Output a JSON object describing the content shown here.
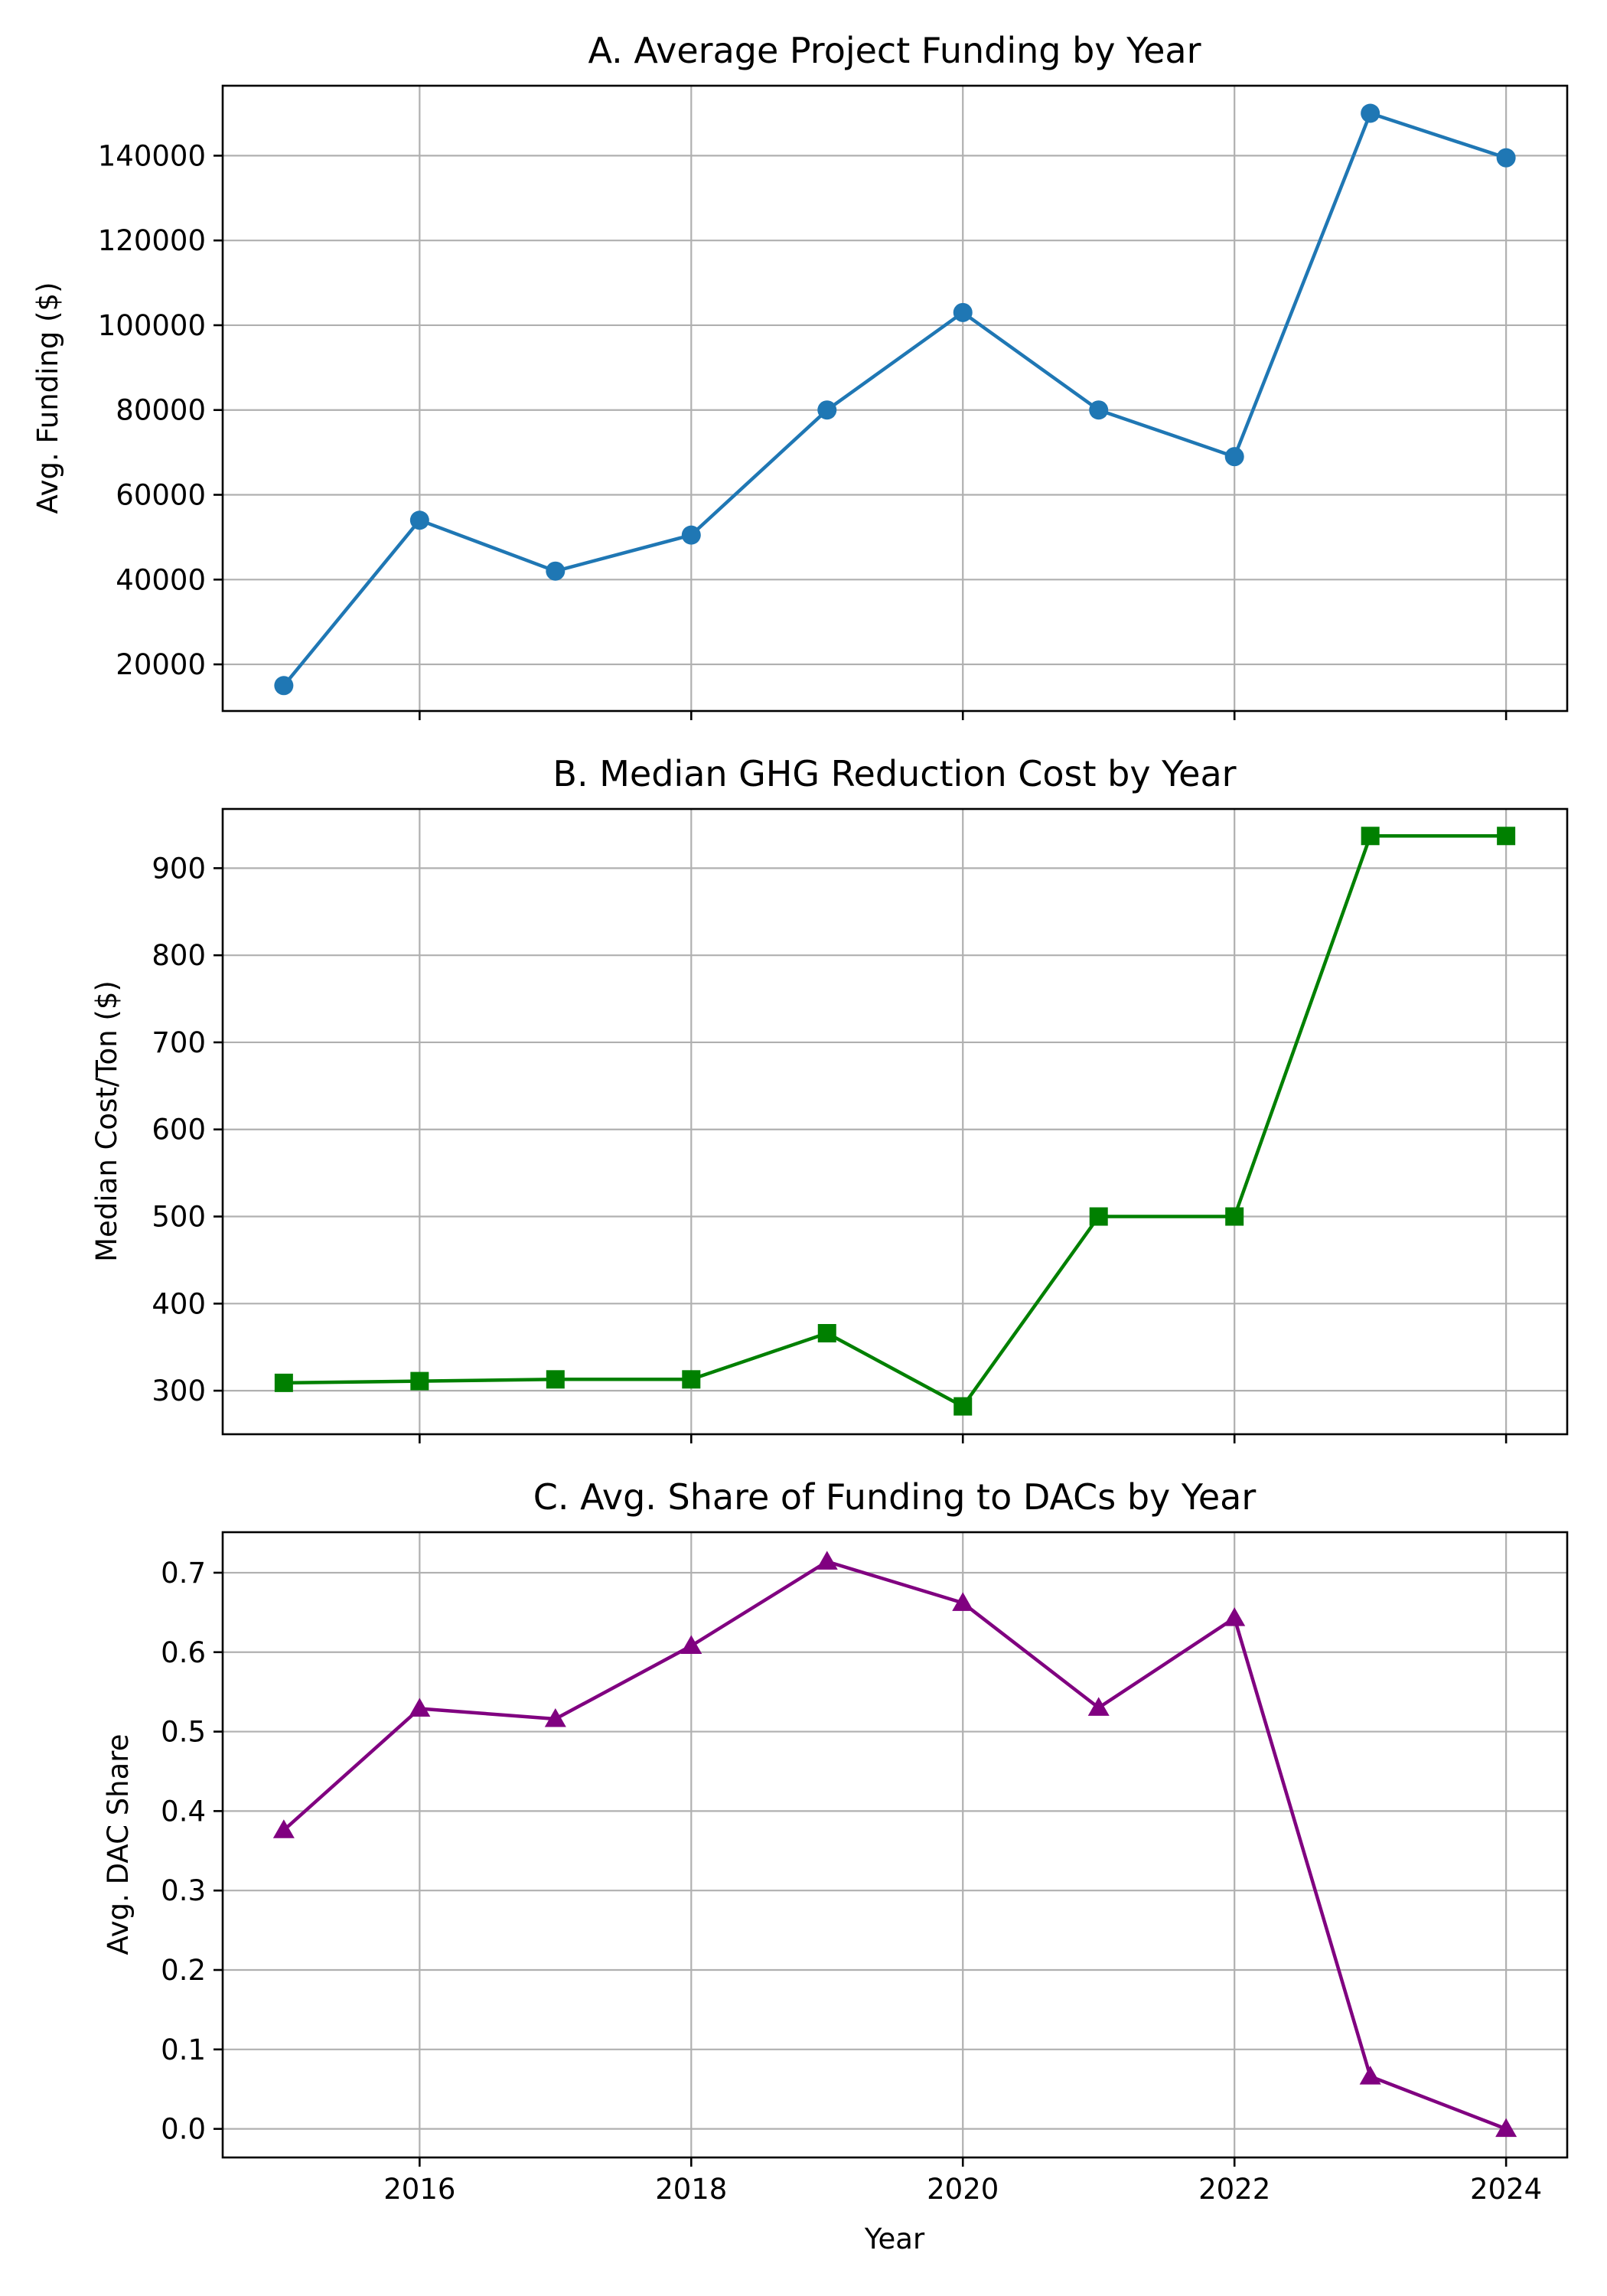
{
  "chart_data": [
    {
      "type": "line",
      "title": "A. Average Project Funding by Year",
      "xlabel": "",
      "ylabel": "Avg. Funding ($)",
      "x": [
        2015,
        2016,
        2017,
        2018,
        2019,
        2020,
        2021,
        2022,
        2023,
        2024
      ],
      "series": [
        {
          "values": [
            15000,
            54000,
            42000,
            50500,
            80000,
            103000,
            80000,
            69000,
            150000,
            139500
          ]
        }
      ],
      "xlim": [
        2014.55,
        2024.45
      ],
      "ylim": [
        9000,
        156500
      ],
      "xticks": [
        2016,
        2018,
        2020,
        2022,
        2024
      ],
      "xticks_labeled": false,
      "yticks": [
        20000,
        40000,
        60000,
        80000,
        100000,
        120000,
        140000
      ],
      "yticklabels": [
        "20000",
        "40000",
        "60000",
        "80000",
        "100000",
        "120000",
        "140000"
      ],
      "color": "#1f77b4",
      "marker": "circle",
      "grid": true
    },
    {
      "type": "line",
      "title": "B. Median GHG Reduction Cost by Year",
      "xlabel": "",
      "ylabel": "Median Cost/Ton ($)",
      "x": [
        2015,
        2016,
        2017,
        2018,
        2019,
        2020,
        2021,
        2022,
        2023,
        2024
      ],
      "series": [
        {
          "values": [
            309,
            311,
            313,
            313,
            366,
            282,
            500,
            500,
            937,
            937
          ]
        }
      ],
      "xlim": [
        2014.55,
        2024.45
      ],
      "ylim": [
        250,
        968
      ],
      "xticks": [
        2016,
        2018,
        2020,
        2022,
        2024
      ],
      "xticks_labeled": false,
      "yticks": [
        300,
        400,
        500,
        600,
        700,
        800,
        900
      ],
      "yticklabels": [
        "300",
        "400",
        "500",
        "600",
        "700",
        "800",
        "900"
      ],
      "color": "#008000",
      "marker": "square",
      "grid": true
    },
    {
      "type": "line",
      "title": "C. Avg. Share of Funding to DACs by Year",
      "xlabel": "Year",
      "ylabel": "Avg. DAC Share",
      "x": [
        2015,
        2016,
        2017,
        2018,
        2019,
        2020,
        2021,
        2022,
        2023,
        2024
      ],
      "series": [
        {
          "values": [
            0.376,
            0.529,
            0.516,
            0.608,
            0.714,
            0.662,
            0.53,
            0.643,
            0.066,
            0.0
          ]
        }
      ],
      "xlim": [
        2014.55,
        2024.45
      ],
      "ylim": [
        -0.036,
        0.751
      ],
      "xticks": [
        2016,
        2018,
        2020,
        2022,
        2024
      ],
      "xticks_labeled": true,
      "xticklabels": [
        "2016",
        "2018",
        "2020",
        "2022",
        "2024"
      ],
      "yticks": [
        0.0,
        0.1,
        0.2,
        0.3,
        0.4,
        0.5,
        0.6,
        0.7
      ],
      "yticklabels": [
        "0.0",
        "0.1",
        "0.2",
        "0.3",
        "0.4",
        "0.5",
        "0.6",
        "0.7"
      ],
      "color": "#800080",
      "marker": "triangle",
      "grid": true
    }
  ]
}
